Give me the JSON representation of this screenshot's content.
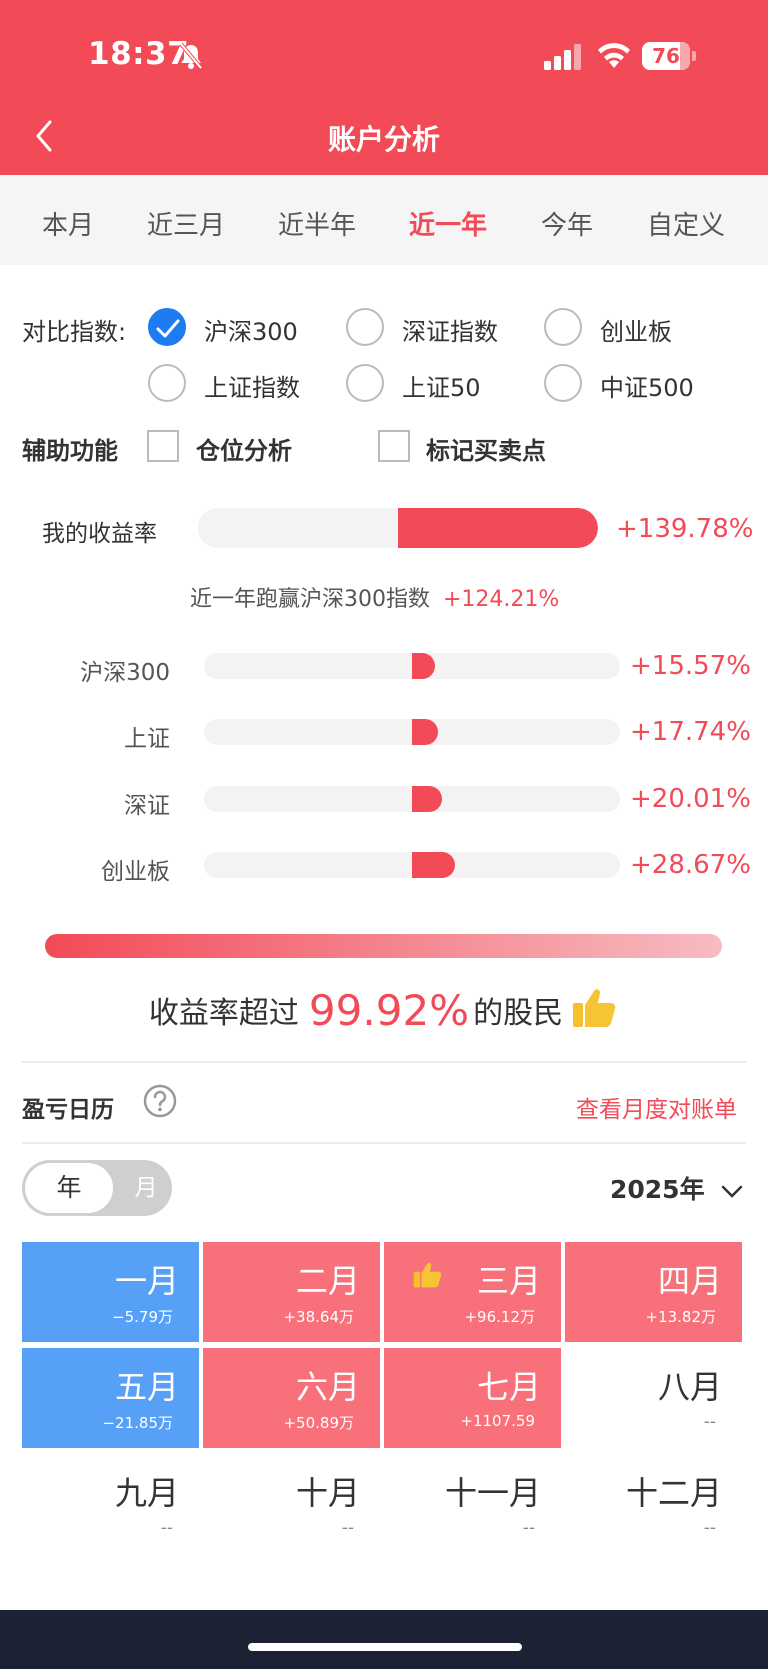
{
  "status_bar": {
    "time": "18:37",
    "battery": "76"
  },
  "header": {
    "title": "账户分析"
  },
  "tabs": [
    {
      "label": "本月",
      "active": false
    },
    {
      "label": "近三月",
      "active": false
    },
    {
      "label": "近半年",
      "active": false
    },
    {
      "label": "近一年",
      "active": true
    },
    {
      "label": "今年",
      "active": false
    },
    {
      "label": "自定义",
      "active": false
    }
  ],
  "compare": {
    "label": "对比指数:",
    "options": [
      {
        "label": "沪深300",
        "checked": true
      },
      {
        "label": "深证指数",
        "checked": false
      },
      {
        "label": "创业板",
        "checked": false
      },
      {
        "label": "上证指数",
        "checked": false
      },
      {
        "label": "上证50",
        "checked": false
      },
      {
        "label": "中证500",
        "checked": false
      }
    ]
  },
  "aux": {
    "label": "辅助功能",
    "options": [
      {
        "label": "仓位分析",
        "checked": false
      },
      {
        "label": "标记买卖点",
        "checked": false
      }
    ]
  },
  "my_return": {
    "label": "我的收益率",
    "value": "+139.78%",
    "fraction": 1.0
  },
  "beat": {
    "text": "近一年跑赢沪深300指数",
    "value": "+124.21%"
  },
  "indices": [
    {
      "label": "沪深300",
      "value": "+15.57%",
      "fraction": 0.11
    },
    {
      "label": "上证",
      "value": "+17.74%",
      "fraction": 0.127
    },
    {
      "label": "深证",
      "value": "+20.01%",
      "fraction": 0.143
    },
    {
      "label": "创业板",
      "value": "+28.67%",
      "fraction": 0.205
    }
  ],
  "rank": {
    "prefix": "收益率超过",
    "value": "99.92%",
    "suffix": "的股民",
    "icon": "thumbs-up-icon"
  },
  "calendar": {
    "title": "盈亏日历",
    "link": "查看月度对账单",
    "toggle": {
      "year": "年",
      "month": "月",
      "selected": "年"
    },
    "year_select": "2025年",
    "months": [
      {
        "name": "一月",
        "value": "−5.79万",
        "tone": "blue"
      },
      {
        "name": "二月",
        "value": "+38.64万",
        "tone": "red"
      },
      {
        "name": "三月",
        "value": "+96.12万",
        "tone": "red",
        "best": true
      },
      {
        "name": "四月",
        "value": "+13.82万",
        "tone": "red"
      },
      {
        "name": "五月",
        "value": "−21.85万",
        "tone": "blue"
      },
      {
        "name": "六月",
        "value": "+50.89万",
        "tone": "red"
      },
      {
        "name": "七月",
        "value": "+1107.59",
        "tone": "red"
      },
      {
        "name": "八月",
        "value": "--",
        "tone": "plain"
      },
      {
        "name": "九月",
        "value": "--",
        "tone": "plain"
      },
      {
        "name": "十月",
        "value": "--",
        "tone": "plain"
      },
      {
        "name": "十一月",
        "value": "--",
        "tone": "plain"
      },
      {
        "name": "十二月",
        "value": "--",
        "tone": "plain"
      }
    ]
  },
  "colors": {
    "primary": "#f24a57",
    "positive": "#f7707a",
    "negative": "#56a0f7"
  }
}
